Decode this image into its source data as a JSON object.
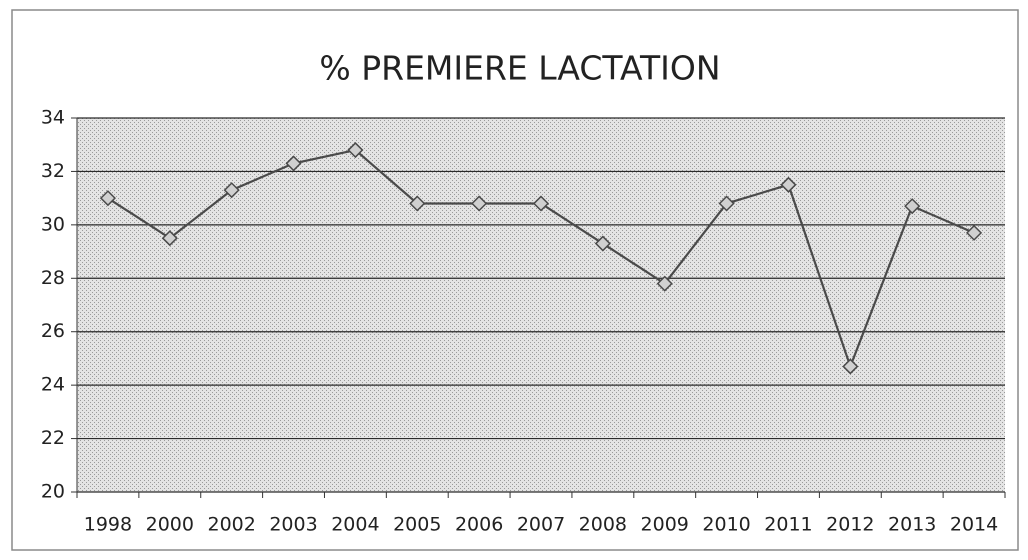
{
  "chart_data": {
    "type": "line",
    "title": "% PREMIERE LACTATION",
    "categories": [
      "1998",
      "2000",
      "2002",
      "2003",
      "2004",
      "2005",
      "2006",
      "2007",
      "2008",
      "2009",
      "2010",
      "2011",
      "2012",
      "2013",
      "2014"
    ],
    "values": [
      31.0,
      29.5,
      31.3,
      32.3,
      32.8,
      30.8,
      30.8,
      30.8,
      29.3,
      27.8,
      30.8,
      31.5,
      24.7,
      30.7,
      29.7
    ],
    "color": "#4a4a4a",
    "marker_fill": "#d0d0d0",
    "ylim": [
      20,
      34
    ],
    "yticks": [
      20,
      22,
      24,
      26,
      28,
      30,
      32,
      34
    ],
    "grid": true
  }
}
